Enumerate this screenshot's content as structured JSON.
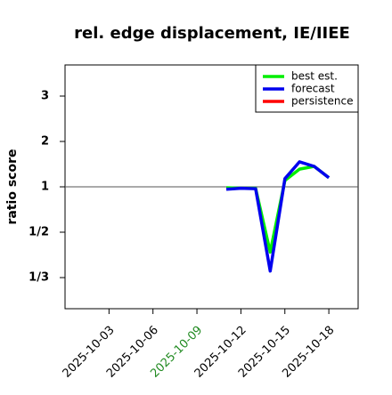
{
  "chart_data": {
    "type": "line",
    "title": "rel. edge displacement, IE/IIEE",
    "ylabel": "ratio score",
    "yscale": "ratio",
    "x": [
      "2025-10-11",
      "2025-10-12",
      "2025-10-13",
      "2025-10-14",
      "2025-10-15",
      "2025-10-16",
      "2025-10-17",
      "2025-10-18"
    ],
    "series": [
      {
        "name": "best est.",
        "color": "#00ee00",
        "values": [
          0.98,
          0.97,
          0.97,
          0.41,
          1.14,
          1.39,
          1.45,
          1.2
        ]
      },
      {
        "name": "forecast",
        "color": "#0000ee",
        "values": [
          0.95,
          0.97,
          0.96,
          0.35,
          1.18,
          1.55,
          1.45,
          1.2
        ]
      },
      {
        "name": "persistence",
        "color": "#ff0000",
        "values": [
          null,
          null,
          null,
          null,
          null,
          null,
          null,
          null
        ]
      }
    ],
    "xlim": [
      "2025-09-30",
      "2025-10-20"
    ],
    "xticks": [
      "2025-10-03",
      "2025-10-06",
      "2025-10-09",
      "2025-10-12",
      "2025-10-15",
      "2025-10-18"
    ],
    "xtick_highlight": "2025-10-09",
    "xtick_highlight_color": "#228b22",
    "ylim": [
      0.2713,
      3.686
    ],
    "yticks": [
      {
        "value": 0.3333,
        "label": "1/3"
      },
      {
        "value": 0.5,
        "label": "1/2"
      },
      1,
      2,
      3
    ],
    "hline": 1,
    "legend": "top-right"
  }
}
